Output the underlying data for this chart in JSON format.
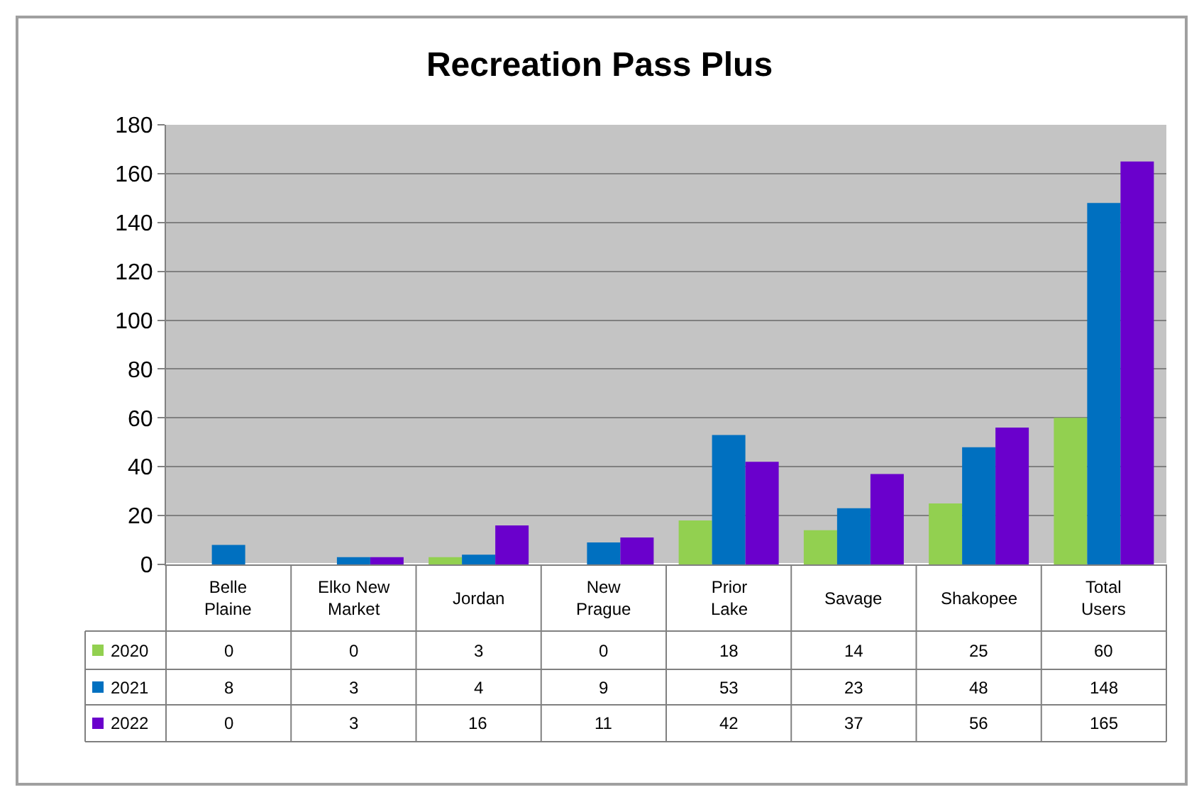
{
  "chart_data": {
    "type": "bar",
    "title": "Recreation Pass Plus",
    "categories": [
      "Belle Plaine",
      "Elko New Market",
      "Jordan",
      "New Prague",
      "Prior Lake",
      "Savage",
      "Shakopee",
      "Total Users"
    ],
    "series": [
      {
        "name": "2020",
        "color": "#92d050",
        "values": [
          0,
          0,
          3,
          0,
          18,
          14,
          25,
          60
        ]
      },
      {
        "name": "2021",
        "color": "#0070c0",
        "values": [
          8,
          3,
          4,
          9,
          53,
          23,
          48,
          148
        ]
      },
      {
        "name": "2022",
        "color": "#6a00cc",
        "values": [
          0,
          3,
          16,
          11,
          42,
          37,
          56,
          165
        ]
      }
    ],
    "ylim": [
      0,
      180
    ],
    "yticks": [
      0,
      20,
      40,
      60,
      80,
      100,
      120,
      140,
      160,
      180
    ],
    "grid": "y",
    "legend": "bottom left",
    "data_labels": true
  }
}
